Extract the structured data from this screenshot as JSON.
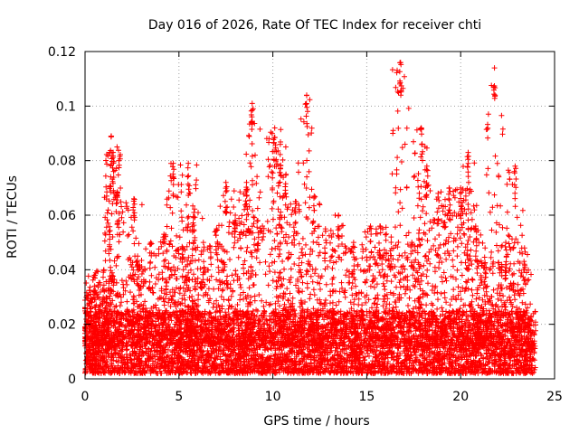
{
  "colors": {
    "points": "#ff0000",
    "grid": "#a0a0a0",
    "frame": "#000000"
  },
  "chart_data": {
    "type": "scatter",
    "title": "Day 016 of 2026, Rate Of TEC Index for receiver chti",
    "xlabel": "GPS time / hours",
    "ylabel": "ROTI / TECUs",
    "xlim": [
      0,
      25
    ],
    "ylim": [
      0,
      0.12
    ],
    "xticks": [
      0,
      5,
      10,
      15,
      20,
      25
    ],
    "xtick_labels": [
      "0",
      "5",
      "10",
      "15",
      "20",
      "25"
    ],
    "yticks": [
      0,
      0.02,
      0.04,
      0.06,
      0.08,
      0.1,
      0.12
    ],
    "ytick_labels": [
      "0",
      "0.02",
      "0.04",
      "0.06",
      "0.08",
      "0.1",
      "0.12"
    ],
    "grid": true,
    "marker": "+",
    "series": [
      {
        "name": "ROTI",
        "note": "dense point cloud; baseline 0.005-0.02 TECU for all hours with spikes",
        "x_range": [
          0,
          24
        ],
        "baseline": [
          0.005,
          0.02
        ],
        "bursts": [
          {
            "x": 0.3,
            "y": 0.031
          },
          {
            "x": 0.5,
            "y": 0.038
          },
          {
            "x": 1.0,
            "y": 0.04
          },
          {
            "x": 1.4,
            "y": 0.089
          },
          {
            "x": 1.5,
            "y": 0.083
          },
          {
            "x": 1.7,
            "y": 0.068
          },
          {
            "x": 2.6,
            "y": 0.066
          },
          {
            "x": 2.8,
            "y": 0.045
          },
          {
            "x": 3.5,
            "y": 0.05
          },
          {
            "x": 4.2,
            "y": 0.053
          },
          {
            "x": 4.7,
            "y": 0.079
          },
          {
            "x": 5.2,
            "y": 0.048
          },
          {
            "x": 5.5,
            "y": 0.079
          },
          {
            "x": 5.8,
            "y": 0.061
          },
          {
            "x": 6.3,
            "y": 0.05
          },
          {
            "x": 7.0,
            "y": 0.055
          },
          {
            "x": 7.5,
            "y": 0.072
          },
          {
            "x": 8.0,
            "y": 0.06
          },
          {
            "x": 8.6,
            "y": 0.072
          },
          {
            "x": 8.9,
            "y": 0.101
          },
          {
            "x": 9.2,
            "y": 0.058
          },
          {
            "x": 10.1,
            "y": 0.092
          },
          {
            "x": 10.4,
            "y": 0.086
          },
          {
            "x": 10.7,
            "y": 0.075
          },
          {
            "x": 11.2,
            "y": 0.065
          },
          {
            "x": 11.8,
            "y": 0.104
          },
          {
            "x": 12.2,
            "y": 0.067
          },
          {
            "x": 12.8,
            "y": 0.055
          },
          {
            "x": 13.5,
            "y": 0.06
          },
          {
            "x": 14.3,
            "y": 0.05
          },
          {
            "x": 15.2,
            "y": 0.056
          },
          {
            "x": 15.7,
            "y": 0.056
          },
          {
            "x": 16.3,
            "y": 0.052
          },
          {
            "x": 16.8,
            "y": 0.116
          },
          {
            "x": 17.4,
            "y": 0.05
          },
          {
            "x": 17.9,
            "y": 0.092
          },
          {
            "x": 18.2,
            "y": 0.078
          },
          {
            "x": 18.8,
            "y": 0.068
          },
          {
            "x": 19.4,
            "y": 0.07
          },
          {
            "x": 20.0,
            "y": 0.07
          },
          {
            "x": 20.4,
            "y": 0.083
          },
          {
            "x": 20.8,
            "y": 0.056
          },
          {
            "x": 21.3,
            "y": 0.048
          },
          {
            "x": 21.8,
            "y": 0.114
          },
          {
            "x": 22.4,
            "y": 0.05
          },
          {
            "x": 22.9,
            "y": 0.078
          },
          {
            "x": 23.4,
            "y": 0.048
          }
        ]
      }
    ]
  }
}
